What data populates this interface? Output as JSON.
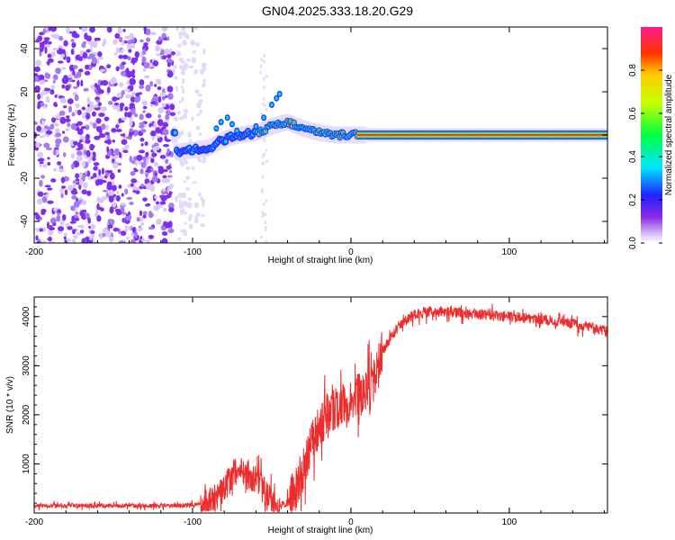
{
  "title": "GN04.2025.333.18.20.G29",
  "chart_data": [
    {
      "type": "heatmap",
      "id": "spectrogram",
      "xlabel": "Height of straight line (km)",
      "ylabel": "Frequency (Hz)",
      "xlim": [
        -200,
        162
      ],
      "ylim": [
        -50,
        50
      ],
      "xticks": [
        "-200",
        "-100",
        "0",
        "100"
      ],
      "xtick_values": [
        -200,
        -100,
        0,
        100
      ],
      "yticks": [
        "-40",
        "-20",
        "0",
        "20",
        "40"
      ],
      "ytick_values": [
        -40,
        -20,
        0,
        20,
        40
      ],
      "colorbar": {
        "label": "Normalized spectral amplitude",
        "range": [
          0,
          1
        ],
        "ticks": [
          "0.0",
          "0.2",
          "0.4",
          "0.6",
          "0.8"
        ],
        "tick_values": [
          0.0,
          0.2,
          0.4,
          0.6,
          0.8
        ]
      },
      "ridge": {
        "description_points_x": [
          -110,
          -100,
          -90,
          -80,
          -70,
          -60,
          -50,
          -40,
          -30,
          -20,
          -10,
          0,
          20,
          60,
          100,
          162
        ],
        "description_points_y": [
          -8,
          -7,
          -6,
          -2,
          0,
          1,
          4,
          6,
          3,
          1,
          0,
          0,
          0,
          0,
          0,
          0
        ]
      },
      "noise_region_x": [
        -200,
        -112
      ],
      "color_noise": "#7b2fe0",
      "color_ridge": "#ff2a2a"
    },
    {
      "type": "line",
      "id": "snr",
      "xlabel": "Height of straight line (km)",
      "ylabel": "SNR (10 * v/v)",
      "xlim": [
        -200,
        162
      ],
      "ylim": [
        0,
        4400
      ],
      "xticks": [
        "-200",
        "-100",
        "0",
        "100"
      ],
      "xtick_values": [
        -200,
        -100,
        0,
        100
      ],
      "yticks": [
        "1000",
        "2000",
        "3000",
        "4000"
      ],
      "ytick_values": [
        1000,
        2000,
        3000,
        4000
      ],
      "series": [
        {
          "name": "SNR",
          "color": "#ee2c2c",
          "x": [
            -200,
            -150,
            -110,
            -95,
            -85,
            -78,
            -72,
            -65,
            -58,
            -52,
            -46,
            -40,
            -35,
            -30,
            -25,
            -20,
            -15,
            -10,
            -5,
            0,
            5,
            10,
            15,
            20,
            30,
            40,
            50,
            60,
            80,
            100,
            120,
            140,
            162
          ],
          "y": [
            150,
            150,
            150,
            180,
            300,
            600,
            900,
            800,
            600,
            300,
            150,
            200,
            500,
            900,
            1400,
            1800,
            2000,
            2100,
            2200,
            2300,
            2400,
            2500,
            2700,
            3300,
            3800,
            4050,
            4100,
            4100,
            4050,
            4000,
            3950,
            3850,
            3700
          ]
        }
      ]
    }
  ]
}
